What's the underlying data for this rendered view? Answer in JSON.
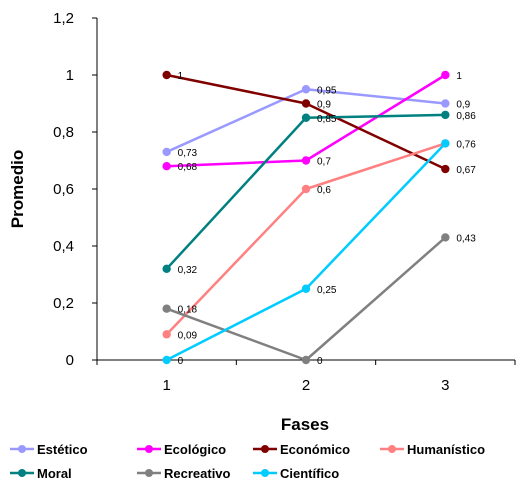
{
  "chart_data": {
    "type": "line",
    "xlabel": "Fases",
    "ylabel": "Promedio",
    "x": [
      "1",
      "2",
      "3"
    ],
    "ylim": [
      0,
      1.2
    ],
    "yticks": [
      0,
      0.2,
      0.4,
      0.6,
      0.8,
      1,
      1.2
    ],
    "ytick_labels": [
      "0",
      "0,2",
      "0,4",
      "0,6",
      "0,8",
      "1",
      "1,2"
    ],
    "grid": false,
    "legend_position": "bottom",
    "series": [
      {
        "name": "Estético",
        "color": "#9999ff",
        "values": [
          0.73,
          0.95,
          0.9
        ],
        "labels": [
          "0,73",
          "0,95",
          "0,9"
        ]
      },
      {
        "name": "Ecológico",
        "color": "#ff00ff",
        "values": [
          0.68,
          0.7,
          1
        ],
        "labels": [
          "0,68",
          "0,7",
          "1"
        ]
      },
      {
        "name": "Económico",
        "color": "#800000",
        "values": [
          1,
          0.9,
          0.67
        ],
        "labels": [
          "1",
          "0,9",
          "0,67"
        ]
      },
      {
        "name": "Humanístico",
        "color": "#ff8080",
        "values": [
          0.09,
          0.6,
          0.76
        ],
        "labels": [
          "0,09",
          "0,6",
          "0,76"
        ]
      },
      {
        "name": "Moral",
        "color": "#008080",
        "values": [
          0.32,
          0.85,
          0.86
        ],
        "labels": [
          "0,32",
          "0,85",
          "0,86"
        ]
      },
      {
        "name": "Recreativo",
        "color": "#808080",
        "values": [
          0.18,
          0,
          0.43
        ],
        "labels": [
          "0,18",
          "0",
          "0,43"
        ]
      },
      {
        "name": "Científico",
        "color": "#00ccff",
        "values": [
          0,
          0.25,
          0.76
        ],
        "labels": [
          "0",
          "0,25",
          ""
        ]
      }
    ]
  }
}
